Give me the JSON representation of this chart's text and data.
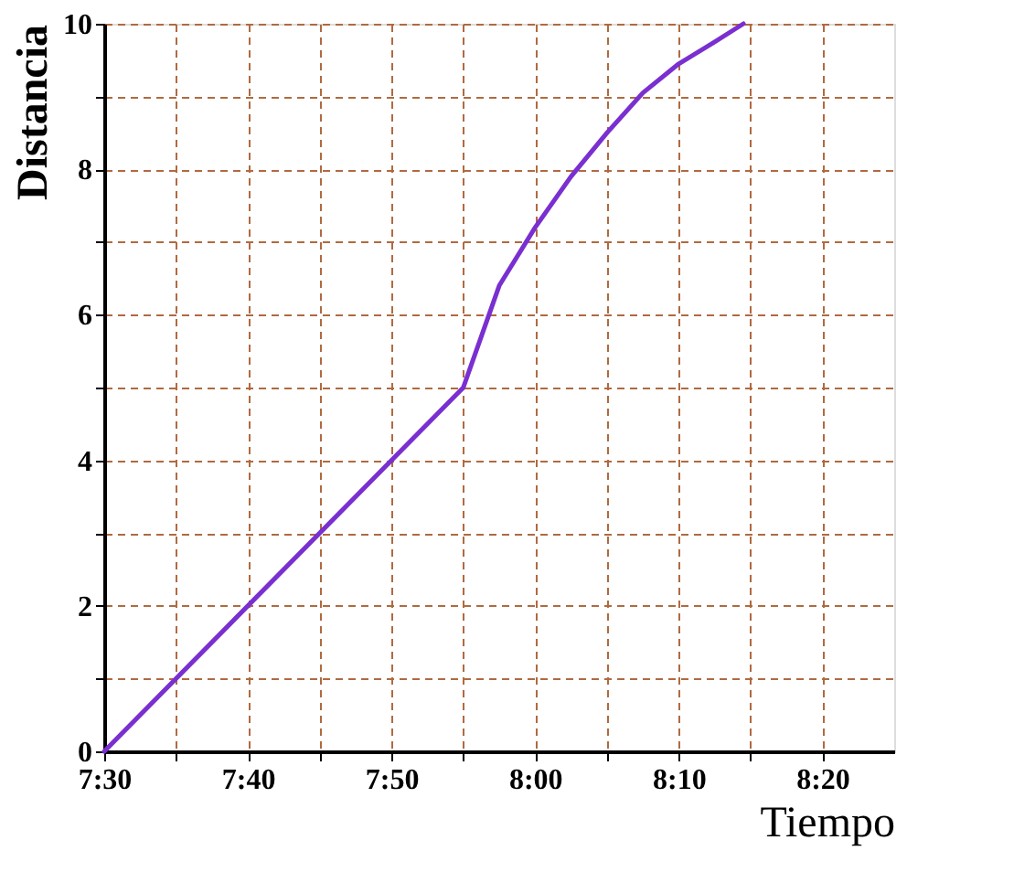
{
  "chart_data": {
    "type": "line",
    "xlabel": "Tiempo",
    "ylabel": "Distancia",
    "x": [
      7.5,
      7.916666666666667,
      7.958333333333333,
      8.0,
      8.041666666666668,
      8.083333333333332,
      8.125,
      8.166666666666668,
      8.208333333333332,
      8.241666666666667
    ],
    "series": [
      {
        "color": "#7a2fd0",
        "values": [
          0,
          5,
          6.4,
          7.2,
          7.9,
          8.5,
          9.05,
          9.45,
          9.75,
          10
        ]
      }
    ],
    "xlim": [
      7.5,
      8.416666666666668
    ],
    "xticks": [
      {
        "value": 7.5,
        "label": "7:30"
      },
      {
        "value": 7.583333333333333,
        "label": null
      },
      {
        "value": 7.666666666666667,
        "label": "7:40"
      },
      {
        "value": 7.75,
        "label": null
      },
      {
        "value": 7.833333333333333,
        "label": "7:50"
      },
      {
        "value": 7.916666666666667,
        "label": null
      },
      {
        "value": 8.0,
        "label": "8:00"
      },
      {
        "value": 8.083333333333332,
        "label": null
      },
      {
        "value": 8.166666666666668,
        "label": "8:10"
      },
      {
        "value": 8.25,
        "label": null
      },
      {
        "value": 8.333333333333332,
        "label": "8:20"
      }
    ],
    "ylim": [
      0,
      10
    ],
    "yticks": [
      0,
      {
        "value": 1,
        "label": null
      },
      2,
      {
        "value": 3,
        "label": null
      },
      4,
      {
        "value": 5,
        "label": null
      },
      6,
      {
        "value": 7,
        "label": null
      },
      8,
      {
        "value": 9,
        "label": null
      },
      10
    ],
    "grid": true,
    "marker": "none",
    "line_style": "solid"
  }
}
